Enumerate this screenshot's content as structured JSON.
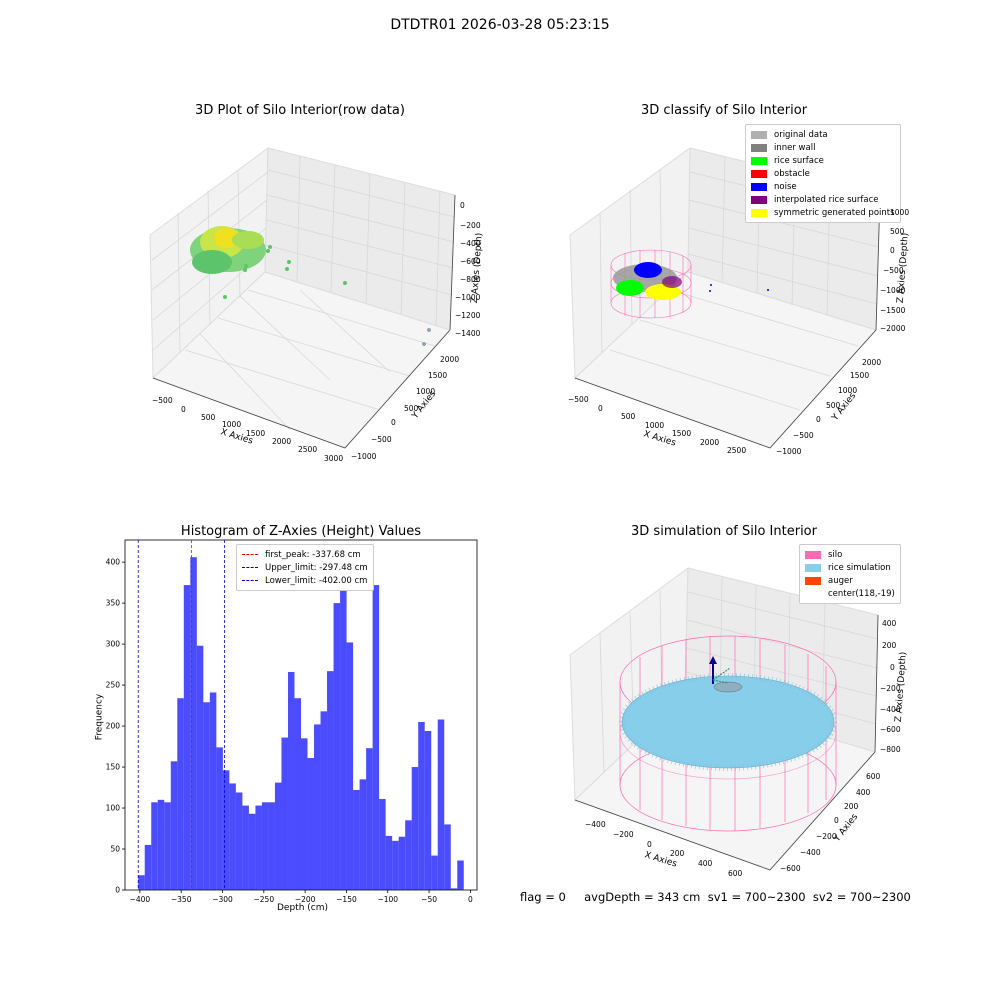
{
  "suptitle": "DTDTR01 2026-03-28 05:23:15",
  "raw_plot": {
    "title": "3D Plot of Silo Interior(row data)",
    "xlabel": "X Axies",
    "ylabel": "Y Axies",
    "zlabel": "Z Axies (Depth)",
    "xticks": [
      "−500",
      "0",
      "500",
      "1000",
      "1500",
      "2000",
      "2500",
      "3000"
    ],
    "yticks": [
      "−1000",
      "−500",
      "0",
      "500",
      "1000",
      "1500",
      "2000"
    ],
    "zticks": [
      "0",
      "−200",
      "−400",
      "−600",
      "−800",
      "−1000",
      "−1200",
      "−1400"
    ]
  },
  "classify_plot": {
    "title": "3D classify of Silo Interior",
    "xlabel": "X Axies",
    "ylabel": "Y Axies",
    "zlabel": "Z Axies (Depth)",
    "xticks": [
      "−500",
      "0",
      "500",
      "1000",
      "1500",
      "2000",
      "2500"
    ],
    "yticks": [
      "−1000",
      "−500",
      "0",
      "500",
      "1000",
      "1500",
      "2000"
    ],
    "zticks": [
      "1000",
      "500",
      "0",
      "−500",
      "−1000",
      "−1500",
      "−2000"
    ],
    "legend": [
      {
        "label": "original data",
        "color": "#b0b0b0"
      },
      {
        "label": "inner wall",
        "color": "#808080"
      },
      {
        "label": "rice surface",
        "color": "#00ff00"
      },
      {
        "label": "obstacle",
        "color": "#ff0000"
      },
      {
        "label": "noise",
        "color": "#0000ff"
      },
      {
        "label": "interpolated rice surface",
        "color": "#800080"
      },
      {
        "label": "symmetric generated points",
        "color": "#ffff00"
      }
    ]
  },
  "chart_data": {
    "type": "bar",
    "title": "Histogram of Z-Axies (Height) Values",
    "xlabel": "Depth (cm)",
    "ylabel": "Frequency",
    "xlim": [
      -418,
      8
    ],
    "ylim": [
      0,
      427
    ],
    "xticks": [
      -400,
      -350,
      -300,
      -250,
      -200,
      -150,
      -100,
      -50,
      0
    ],
    "yticks": [
      0,
      50,
      100,
      150,
      200,
      250,
      300,
      350,
      400
    ],
    "bin_start": -402,
    "bin_width": 7.88,
    "values": [
      18,
      55,
      107,
      110,
      107,
      157,
      234,
      372,
      406,
      298,
      229,
      241,
      174,
      146,
      130,
      119,
      103,
      93,
      103,
      107,
      107,
      131,
      186,
      266,
      234,
      185,
      161,
      202,
      218,
      267,
      350,
      371,
      302,
      122,
      135,
      173,
      372,
      111,
      66,
      60,
      65,
      85,
      150,
      205,
      194,
      42,
      208,
      80,
      2,
      36
    ],
    "lines": [
      {
        "label": "first_peak: -337.68 cm",
        "x": -337.68,
        "color": "#ff0000"
      },
      {
        "label": "Upper_limit: -297.48 cm",
        "x": -297.48,
        "color": "#0000cc"
      },
      {
        "label": "Lower_limit: -402.00 cm",
        "x": -402.0,
        "color": "#0000cc"
      }
    ],
    "bar_color": "#0000ff"
  },
  "simulation_plot": {
    "title": "3D simulation of Silo Interior",
    "xlabel": "X Axies",
    "ylabel": "Y Axies",
    "zlabel": "Z Axies (Depth)",
    "xticks": [
      "−400",
      "−200",
      "0",
      "200",
      "400",
      "600"
    ],
    "yticks": [
      "−600",
      "−400",
      "−200",
      "0",
      "200",
      "400",
      "600"
    ],
    "zticks": [
      "400",
      "200",
      "0",
      "−200",
      "−400",
      "−600",
      "−800"
    ],
    "legend": [
      {
        "label": "silo",
        "color": "#ff69b4"
      },
      {
        "label": "rice simulation",
        "color": "#87ceeb"
      },
      {
        "label": "auger",
        "color": "#ff4500"
      },
      {
        "label": "center(118,-19)",
        "color": ""
      }
    ]
  },
  "footer": "flag = 0     avgDepth = 343 cm  sv1 = 700~2300  sv2 = 700~2300"
}
